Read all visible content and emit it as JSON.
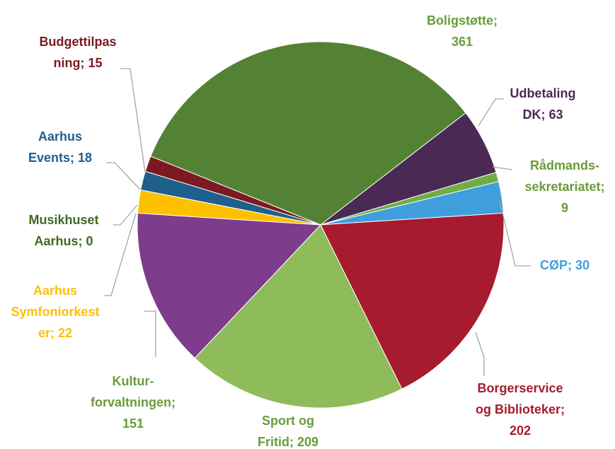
{
  "chart_data": {
    "type": "pie",
    "labels": [
      [
        "Boligstøtte;",
        "361"
      ],
      [
        "Udbetaling",
        "DK; 63"
      ],
      [
        "Rådmands-",
        "sekretariatet;",
        "9"
      ],
      [
        "CØP; 30"
      ],
      [
        "Borgerservice",
        "og Biblioteker;",
        "202"
      ],
      [
        "Sport og",
        "Fritid; 209"
      ],
      [
        "Kultur-",
        "forvaltningen;",
        "151"
      ],
      [
        "Aarhus",
        "Symfoniorkest",
        "er; 22"
      ],
      [
        "Musikhuset",
        "Aarhus; 0"
      ],
      [
        "Aarhus",
        "Events; 18"
      ],
      [
        "Budgettilpas",
        "ning; 15"
      ]
    ],
    "values": [
      361,
      63,
      9,
      30,
      202,
      209,
      151,
      22,
      0,
      18,
      15
    ],
    "colors": [
      "#548235",
      "#4a2a55",
      "#70ad47",
      "#3f9fdc",
      "#a61b2e",
      "#8fbc5a",
      "#7d3c8c",
      "#ffc000",
      "#548235",
      "#1f5f8b",
      "#7b1a20"
    ],
    "label_colors": [
      "#6a9c3a",
      "#4a2a55",
      "#6a9c3a",
      "#3f9fdc",
      "#a61b2e",
      "#6a9c3a",
      "#6a9c3a",
      "#ffc000",
      "#3d6b26",
      "#1f5f8b",
      "#7b1a20"
    ]
  }
}
